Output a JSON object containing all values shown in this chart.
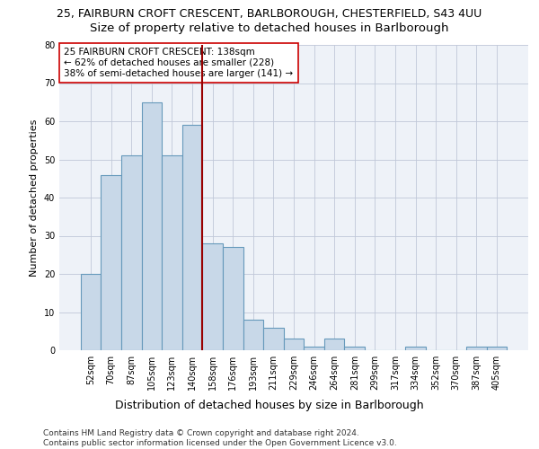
{
  "title_line1": "25, FAIRBURN CROFT CRESCENT, BARLBOROUGH, CHESTERFIELD, S43 4UU",
  "title_line2": "Size of property relative to detached houses in Barlborough",
  "xlabel": "Distribution of detached houses by size in Barlborough",
  "ylabel": "Number of detached properties",
  "categories": [
    "52sqm",
    "70sqm",
    "87sqm",
    "105sqm",
    "123sqm",
    "140sqm",
    "158sqm",
    "176sqm",
    "193sqm",
    "211sqm",
    "229sqm",
    "246sqm",
    "264sqm",
    "281sqm",
    "299sqm",
    "317sqm",
    "334sqm",
    "352sqm",
    "370sqm",
    "387sqm",
    "405sqm"
  ],
  "values": [
    20,
    46,
    51,
    65,
    51,
    59,
    28,
    27,
    8,
    6,
    3,
    1,
    3,
    1,
    0,
    0,
    1,
    0,
    0,
    1,
    1
  ],
  "bar_color": "#c8d8e8",
  "bar_edge_color": "#6699bb",
  "bar_linewidth": 0.8,
  "vline_x": 5.5,
  "vline_color": "#990000",
  "vline_linewidth": 1.5,
  "annotation_text": "25 FAIRBURN CROFT CRESCENT: 138sqm\n← 62% of detached houses are smaller (228)\n38% of semi-detached houses are larger (141) →",
  "annotation_box_color": "#ffffff",
  "annotation_box_edgecolor": "#cc0000",
  "ylim": [
    0,
    80
  ],
  "yticks": [
    0,
    10,
    20,
    30,
    40,
    50,
    60,
    70,
    80
  ],
  "footnote": "Contains HM Land Registry data © Crown copyright and database right 2024.\nContains public sector information licensed under the Open Government Licence v3.0.",
  "bg_color": "#eef2f8",
  "grid_color": "#c0c8d8",
  "title1_fontsize": 9,
  "title2_fontsize": 9.5,
  "xlabel_fontsize": 9,
  "ylabel_fontsize": 8,
  "tick_fontsize": 7,
  "annot_fontsize": 7.5,
  "footnote_fontsize": 6.5
}
